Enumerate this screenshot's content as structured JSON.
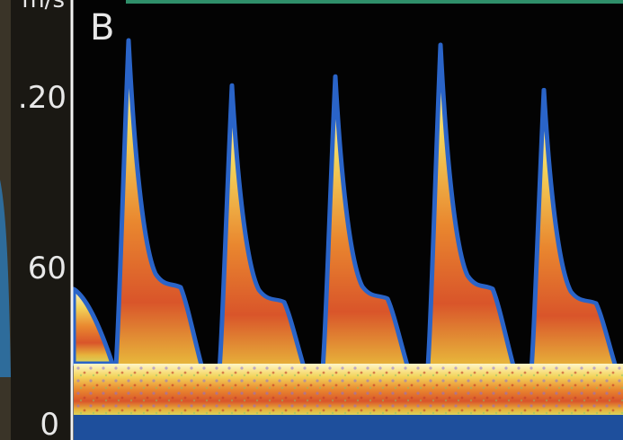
{
  "panel_label": "B",
  "scale": {
    "unit": "m/s",
    "ticks": [
      ".20",
      "60",
      "0"
    ]
  }
}
